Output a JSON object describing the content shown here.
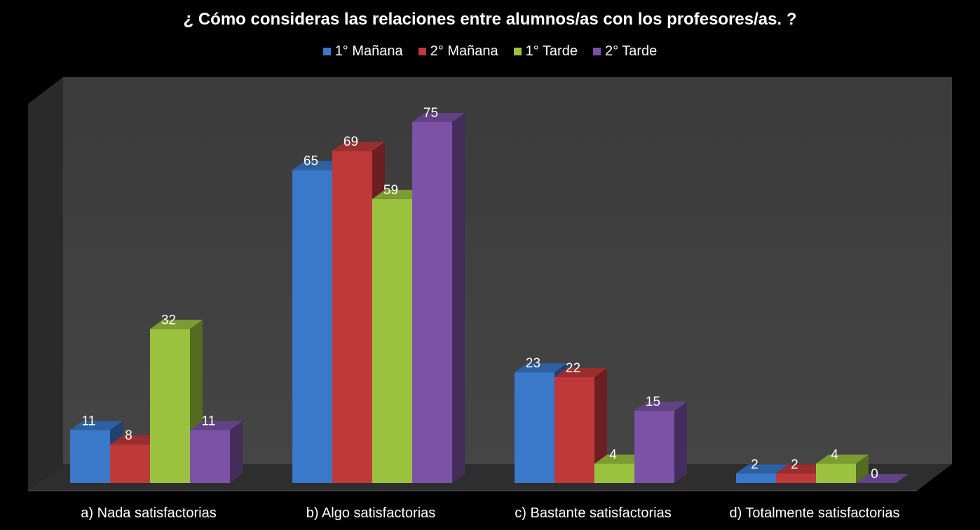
{
  "chart_data": {
    "type": "bar",
    "title": "¿ Cómo consideras las relaciones entre alumnos/as con los profesores/as. ?",
    "categories": [
      "a) Nada satisfactorias",
      "b) Algo satisfactorias",
      "c) Bastante satisfactorias",
      "d) Totalmente satisfactorias"
    ],
    "series": [
      {
        "name": "1° Mañana",
        "values": [
          11,
          65,
          23,
          2
        ],
        "color": "#3a78c9"
      },
      {
        "name": "2° Mañana",
        "values": [
          8,
          69,
          22,
          2
        ],
        "color": "#c0393a"
      },
      {
        "name": "1° Tarde",
        "values": [
          32,
          59,
          4,
          4
        ],
        "color": "#9bc23e"
      },
      {
        "name": "2° Tarde",
        "values": [
          11,
          75,
          15,
          0
        ],
        "color": "#7b52a6"
      }
    ],
    "xlabel": "",
    "ylabel": "",
    "legend": "top",
    "grid": false
  }
}
